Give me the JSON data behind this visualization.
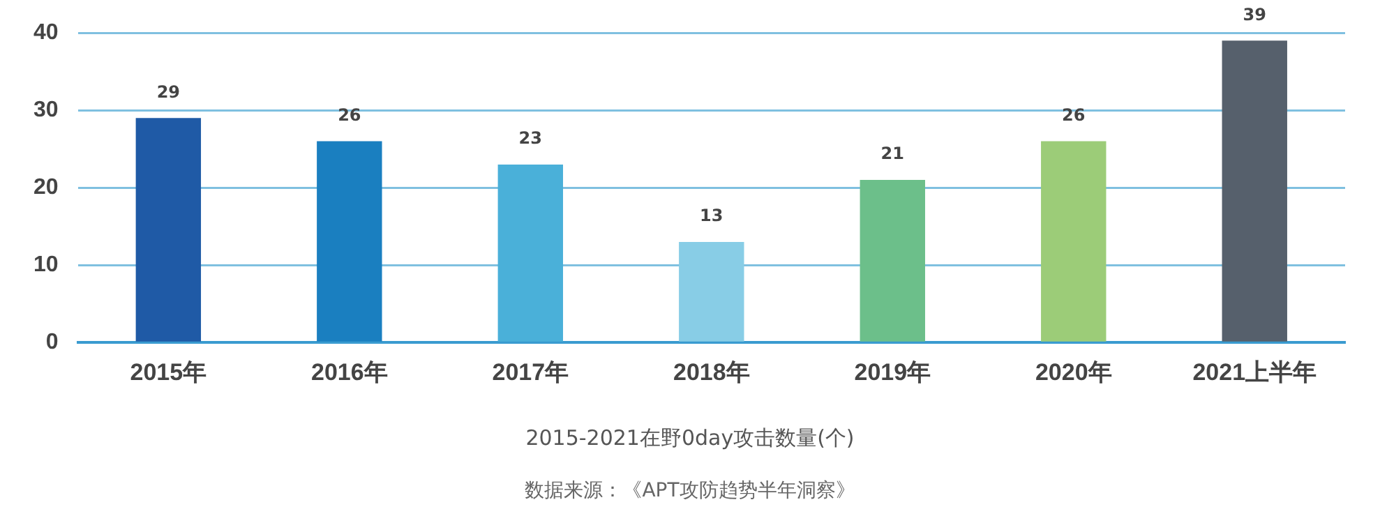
{
  "chart_data": {
    "type": "bar",
    "title": "2015-2021在野0day攻击数量(个)",
    "categories": [
      "2015年",
      "2016年",
      "2017年",
      "2018年",
      "2019年",
      "2020年",
      "2021上半年"
    ],
    "values": [
      29,
      26,
      23,
      13,
      21,
      26,
      39
    ],
    "colors": [
      "#1f5aa6",
      "#1a7fc0",
      "#4ab0d9",
      "#88cde6",
      "#6cbf8a",
      "#9ccc78",
      "#56606c"
    ],
    "ylim": [
      0,
      40
    ],
    "yticks": [
      0,
      10,
      20,
      30,
      40
    ],
    "grid": "y",
    "data_labels": true,
    "annotations": [
      "数据来源：《APT攻防趋势半年洞察》"
    ]
  }
}
